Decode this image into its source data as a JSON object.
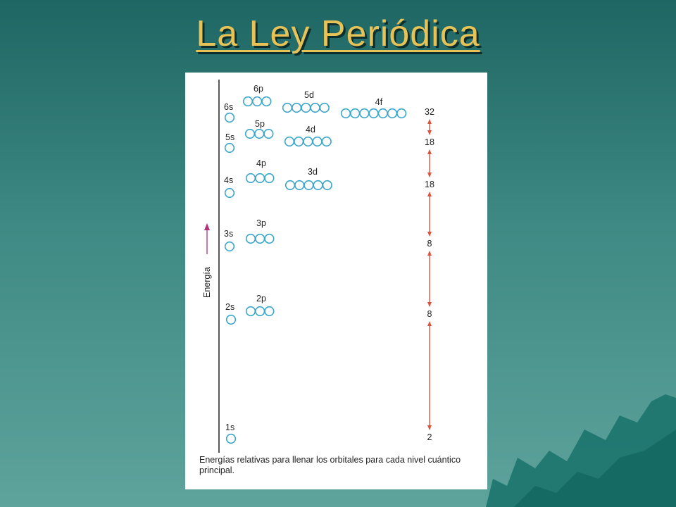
{
  "slide": {
    "title": "La Ley Periódica"
  },
  "diagram": {
    "axis_label": "Energía",
    "caption": "Energías relativas para llenar los orbitales para cada nivel cuántico principal.",
    "colors": {
      "orbital": "#3aa6cc",
      "arrow": "#d8563a",
      "energy_arrow": "#b0307a"
    },
    "sublevels": [
      {
        "label": "1s",
        "orbitals": 1
      },
      {
        "label": "2s",
        "orbitals": 1
      },
      {
        "label": "2p",
        "orbitals": 3
      },
      {
        "label": "3s",
        "orbitals": 1
      },
      {
        "label": "3p",
        "orbitals": 3
      },
      {
        "label": "4s",
        "orbitals": 1
      },
      {
        "label": "4p",
        "orbitals": 3
      },
      {
        "label": "3d",
        "orbitals": 5
      },
      {
        "label": "5s",
        "orbitals": 1
      },
      {
        "label": "5p",
        "orbitals": 3
      },
      {
        "label": "4d",
        "orbitals": 5
      },
      {
        "label": "6s",
        "orbitals": 1
      },
      {
        "label": "6p",
        "orbitals": 3
      },
      {
        "label": "5d",
        "orbitals": 5
      },
      {
        "label": "4f",
        "orbitals": 7
      }
    ],
    "period_capacities": [
      "2",
      "8",
      "8",
      "18",
      "18",
      "32"
    ]
  }
}
